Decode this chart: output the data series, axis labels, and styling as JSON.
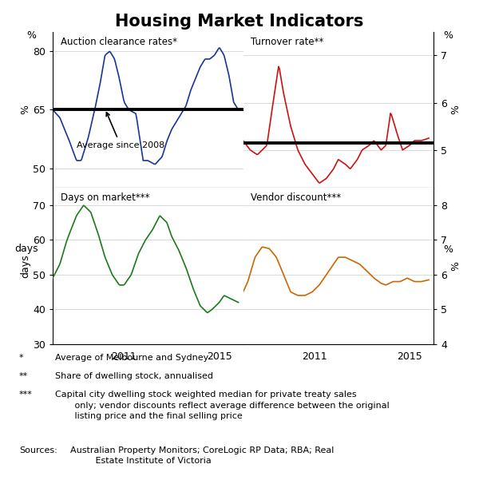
{
  "title": "Housing Market Indicators",
  "title_fontsize": 15,
  "auction_label": "Auction clearance rates*",
  "auction_ylabel": "%",
  "auction_ylim": [
    45,
    85
  ],
  "auction_yticks": [
    50,
    65,
    80
  ],
  "auction_avg": 65,
  "turnover_label": "Turnover rate**",
  "turnover_ylabel": "%",
  "turnover_ylim": [
    4.2,
    7.5
  ],
  "turnover_yticks": [
    5,
    6,
    7
  ],
  "turnover_avg": 5.15,
  "days_label": "Days on market***",
  "days_ylabel": "days",
  "days_ylim": [
    30,
    75
  ],
  "days_yticks": [
    30,
    40,
    50,
    60,
    70
  ],
  "vendor_label": "Vendor discount***",
  "vendor_ylabel": "%",
  "vendor_ylim": [
    4.0,
    8.5
  ],
  "vendor_yticks": [
    4,
    5,
    6,
    7,
    8
  ],
  "avg_annotation": "Average since 2008",
  "colors": {
    "auction": "#1a3399",
    "turnover": "#cc1111",
    "days": "#1a7a1a",
    "vendor": "#cc6600",
    "avg_line": "#000000"
  },
  "xlim_start": 2008.0,
  "xlim_end": 2016.0,
  "xticks_top": [
    2009,
    2011,
    2013,
    2015
  ],
  "xtick_labels_top": [
    "",
    "2011",
    "",
    "2015"
  ],
  "xticks_bottom": [
    2009,
    2011,
    2013,
    2015
  ],
  "xtick_labels_bottom": [
    "",
    "2011",
    "",
    "2015"
  ]
}
